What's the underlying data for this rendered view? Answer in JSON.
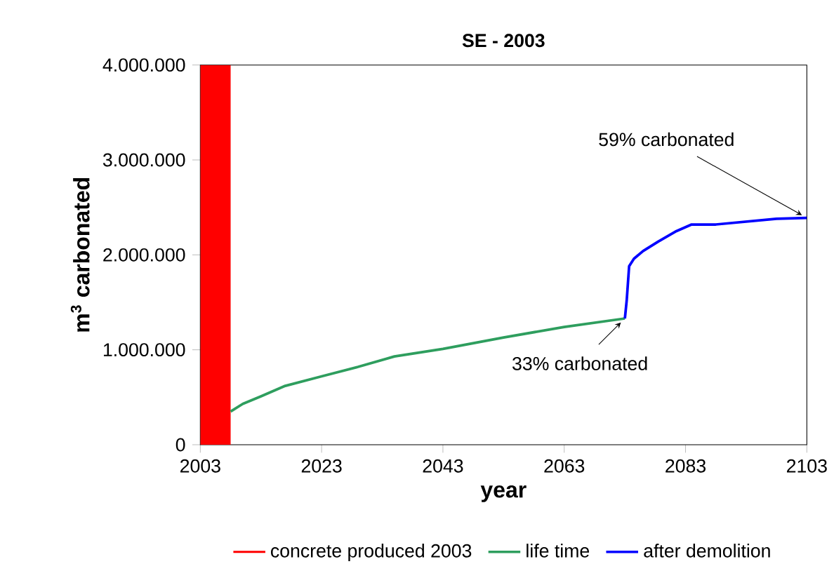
{
  "chart_data": {
    "type": "line",
    "title": "SE - 2003",
    "xlabel": "year",
    "ylabel": "m$^{3}$ carbonated",
    "xlim": [
      2003,
      2103
    ],
    "xticks": [
      2003,
      2023,
      2043,
      2063,
      2083,
      2103
    ],
    "ylim": [
      0,
      4000000
    ],
    "yticks": [
      0,
      {
        "value": 1000000,
        "label": "1.000.000"
      },
      {
        "value": 2000000,
        "label": "2.000.000"
      },
      {
        "value": 3000000,
        "label": "3.000.000"
      },
      {
        "value": 4000000,
        "label": "4.000.000"
      }
    ],
    "bands": [
      {
        "axis": "x",
        "from": 2003,
        "to": 2008,
        "label": "concrete produced 2003",
        "color": "#ff0000"
      }
    ],
    "series": [
      {
        "name": "life time",
        "color": "#2e9e5e",
        "x": [
          2008,
          2010,
          2013,
          2017,
          2023,
          2029,
          2035,
          2043,
          2053,
          2063,
          2073
        ],
        "values": [
          350000,
          430000,
          510000,
          620000,
          720000,
          820000,
          930000,
          1010000,
          1130000,
          1240000,
          1330000
        ]
      },
      {
        "name": "after demolition",
        "color": "#0000ff",
        "x": [
          2073,
          2073.3,
          2073.7,
          2074.5,
          2076,
          2078.5,
          2081.5,
          2084,
          2088,
          2093,
          2098,
          2103
        ],
        "values": [
          1330000,
          1520000,
          1880000,
          1960000,
          2040000,
          2140000,
          2250000,
          2320000,
          2320000,
          2350000,
          2380000,
          2390000
        ]
      }
    ],
    "annotations": [
      {
        "text": "59% carbonated",
        "x": 2103,
        "y": 2390000
      },
      {
        "text": "33% carbonated",
        "x": 2073,
        "y": 1330000
      }
    ],
    "grid": false,
    "legend": "bottom",
    "marker": "none",
    "line_style": "solid"
  }
}
